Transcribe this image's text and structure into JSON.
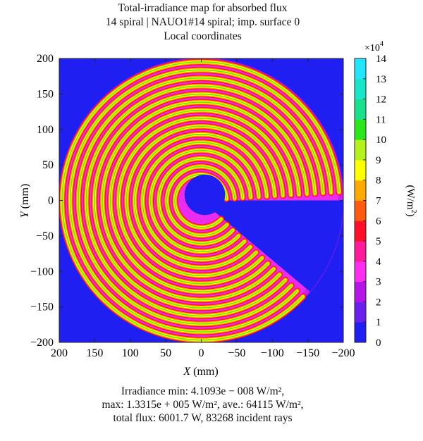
{
  "chart_data": {
    "type": "heatmap",
    "title_lines": [
      "Total-irradiance map for absorbed flux",
      "14 spiral | NAUO1#14 spiral; imp. surface 0",
      "Local coordinates"
    ],
    "xlabel_var": "X",
    "xlabel_unit": " (mm)",
    "ylabel_var": "Y",
    "ylabel_unit": " (mm)",
    "xlim": [
      200,
      -200
    ],
    "ylim": [
      -200,
      200
    ],
    "x_ticks": [
      "200",
      "150",
      "100",
      "50",
      "0",
      "−50",
      "−100",
      "−150",
      "−200"
    ],
    "y_ticks": [
      "200",
      "150",
      "100",
      "50",
      "0",
      "−50",
      "−100",
      "−150",
      "−200"
    ],
    "colorbar": {
      "multiplier_base": "×10",
      "multiplier_exp": "4",
      "ticks": [
        "14",
        "13",
        "12",
        "11",
        "10",
        "9",
        "8",
        "7",
        "6",
        "5",
        "4",
        "3",
        "2",
        "1",
        "0"
      ],
      "label": "(W/m",
      "label_exp": "2",
      "label_end": ")",
      "range": [
        0,
        14
      ],
      "colors": [
        "#1f1ff2",
        "#6a20ee",
        "#b516e8",
        "#ff2df0",
        "#ff1c9a",
        "#ff1028",
        "#ff5a10",
        "#ffaa00",
        "#ffff00",
        "#b5f21c",
        "#2ae61a",
        "#19e08c",
        "#19e6c8",
        "#22e6ff"
      ]
    },
    "background_color": "#1f1ff2",
    "spiral": {
      "outer_radius_mm": 200,
      "inner_radius_mm": 30,
      "turns": 14,
      "gap_wedge_deg": [
        0,
        -40
      ]
    }
  },
  "caption_lines": [
    "Irradiance min: 4.1093e − 008 W/m²,",
    "max: 1.3315e + 005 W/m², ave.: 64115 W/m²,",
    "total flux: 6001.7 W, 83268 incident rays"
  ]
}
